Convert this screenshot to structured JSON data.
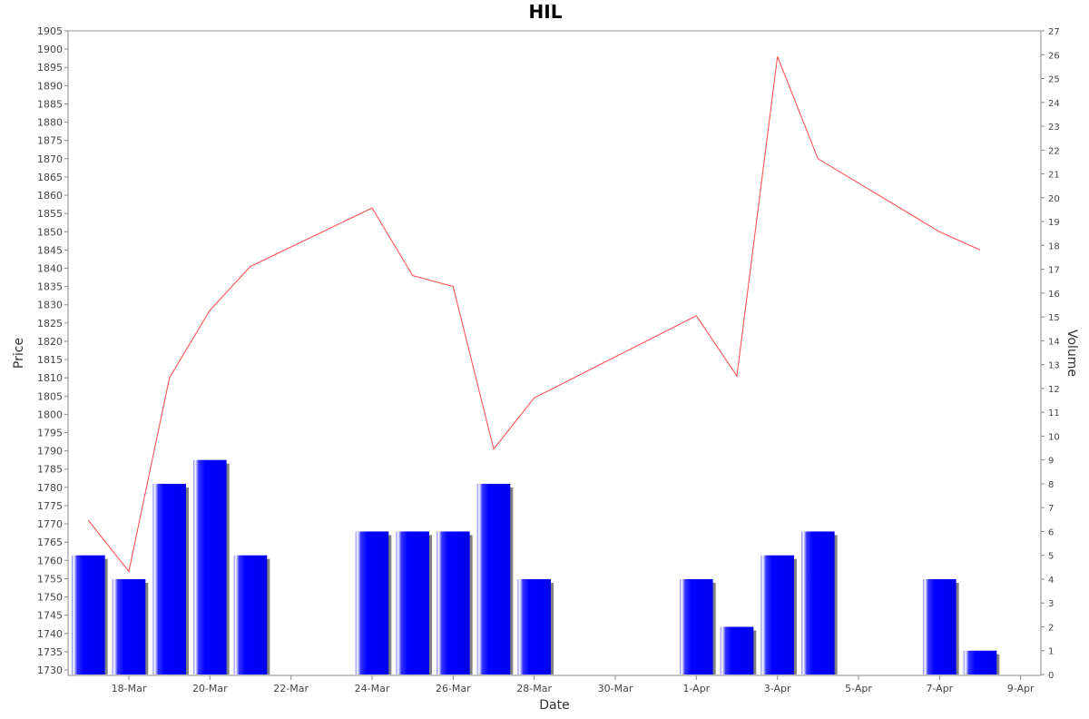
{
  "chart_data": {
    "type": "bar+line",
    "title": "HIL",
    "xlabel": "Date",
    "ylabel_left": "Price",
    "ylabel_right": "Volume",
    "x_ticks": [
      "18-Mar",
      "20-Mar",
      "22-Mar",
      "24-Mar",
      "26-Mar",
      "28-Mar",
      "30-Mar",
      "1-Apr",
      "3-Apr",
      "5-Apr",
      "7-Apr",
      "9-Apr"
    ],
    "x_range": [
      "2017-03-16 12:00",
      "2017-04-09 12:00"
    ],
    "price_range": [
      1730,
      1905
    ],
    "price_tick_step": 5,
    "volume_range": [
      0,
      27
    ],
    "volume_tick_step": 1,
    "price_series": {
      "color": "#ff5555",
      "points": [
        {
          "date": "2017-03-17",
          "price": 1771
        },
        {
          "date": "2017-03-18",
          "price": 1757
        },
        {
          "date": "2017-03-19",
          "price": 1810
        },
        {
          "date": "2017-03-20",
          "price": 1828.5
        },
        {
          "date": "2017-03-21",
          "price": 1840.5
        },
        {
          "date": "2017-03-24",
          "price": 1856.5
        },
        {
          "date": "2017-03-25",
          "price": 1838
        },
        {
          "date": "2017-03-26",
          "price": 1835
        },
        {
          "date": "2017-03-27",
          "price": 1790.5
        },
        {
          "date": "2017-03-28",
          "price": 1804.5
        },
        {
          "date": "2017-04-01",
          "price": 1827
        },
        {
          "date": "2017-04-02",
          "price": 1810.5
        },
        {
          "date": "2017-04-03",
          "price": 1898
        },
        {
          "date": "2017-04-04",
          "price": 1870
        },
        {
          "date": "2017-04-07",
          "price": 1850
        },
        {
          "date": "2017-04-08",
          "price": 1845
        }
      ]
    },
    "volume_series": {
      "color": "#0000ff",
      "shadow_color": "#808080",
      "bars": [
        {
          "date": "2017-03-17",
          "volume": 5
        },
        {
          "date": "2017-03-18",
          "volume": 4
        },
        {
          "date": "2017-03-19",
          "volume": 8
        },
        {
          "date": "2017-03-20",
          "volume": 9
        },
        {
          "date": "2017-03-21",
          "volume": 5
        },
        {
          "date": "2017-03-24",
          "volume": 6
        },
        {
          "date": "2017-03-25",
          "volume": 6
        },
        {
          "date": "2017-03-26",
          "volume": 6
        },
        {
          "date": "2017-03-27",
          "volume": 8
        },
        {
          "date": "2017-03-28",
          "volume": 4
        },
        {
          "date": "2017-04-01",
          "volume": 4
        },
        {
          "date": "2017-04-02",
          "volume": 2
        },
        {
          "date": "2017-04-03",
          "volume": 5
        },
        {
          "date": "2017-04-04",
          "volume": 6
        },
        {
          "date": "2017-04-07",
          "volume": 4
        },
        {
          "date": "2017-04-08",
          "volume": 1
        }
      ]
    }
  }
}
